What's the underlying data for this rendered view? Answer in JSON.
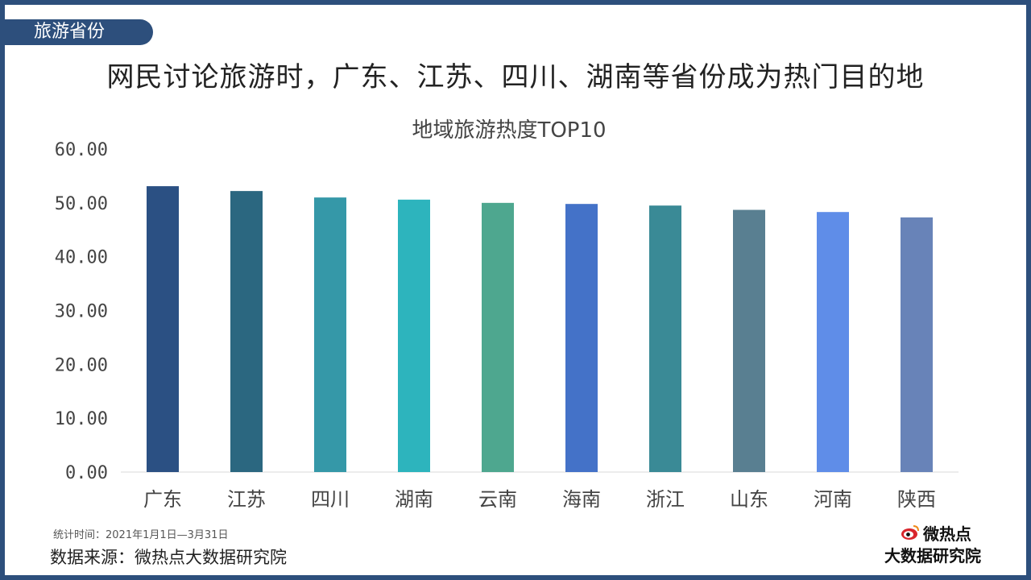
{
  "section_tag": "旅游省份",
  "headline": "网民讨论旅游时，广东、江苏、四川、湖南等省份成为热门目的地",
  "footnote": "统计时间：2021年1月1日—3月31日",
  "source": "数据来源：微热点大数据研究院",
  "logo": {
    "top_text": "微热点",
    "bottom_text": "大数据研究院",
    "icon": "weibo-eye-icon",
    "accent": "#d9262c"
  },
  "colors": {
    "frame": "#2d4f7c",
    "tag_bg": "#2d4f7c"
  },
  "chart_data": {
    "type": "bar",
    "title": "地域旅游热度TOP10",
    "xlabel": "",
    "ylabel": "",
    "categories": [
      "广东",
      "江苏",
      "四川",
      "湖南",
      "云南",
      "海南",
      "浙江",
      "山东",
      "河南",
      "陕西"
    ],
    "values": [
      53.1,
      52.2,
      51.0,
      50.6,
      50.0,
      49.8,
      49.5,
      48.7,
      48.3,
      47.3
    ],
    "ylim": [
      0,
      60
    ],
    "yticks": [
      "0.00",
      "10.00",
      "20.00",
      "30.00",
      "40.00",
      "50.00",
      "60.00"
    ],
    "grid": false,
    "legend": "none",
    "bar_colors": [
      "#2b5083",
      "#2b6780",
      "#3598a8",
      "#2db4bd",
      "#4ea78f",
      "#4472c8",
      "#3a8a96",
      "#597f91",
      "#5f8de8",
      "#6883b8"
    ]
  }
}
